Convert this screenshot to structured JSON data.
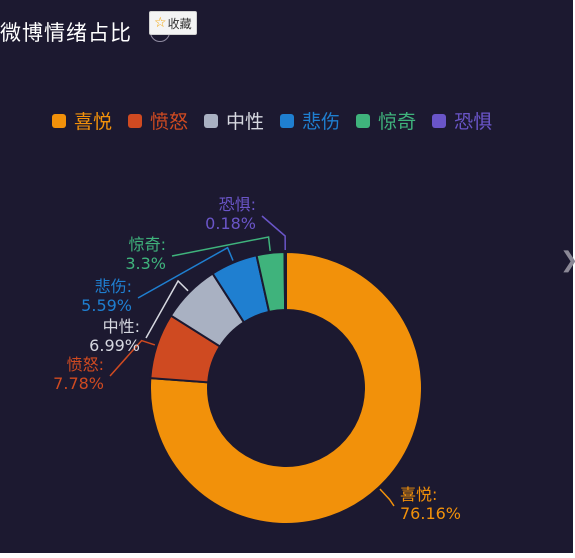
{
  "title": "微博情绪占比",
  "help_icon": "question-circle-icon",
  "favorite": {
    "icon": "star-icon",
    "label": "收藏"
  },
  "nav_arrow_icon": "chevron-right-icon",
  "colors": {
    "background": "#1c1930",
    "喜悦": "#f2910a",
    "愤怒": "#cf4a21",
    "中性": "#a9b1c2",
    "悲伤": "#1f7fd0",
    "惊奇": "#3fb37c",
    "恐惧": "#6a55c8"
  },
  "chart_data": {
    "type": "pie",
    "style": "donut",
    "legend_position": "top",
    "slices": [
      {
        "name": "喜悦",
        "value": 76.16,
        "label": "76.16%"
      },
      {
        "name": "愤怒",
        "value": 7.78,
        "label": "7.78%"
      },
      {
        "name": "中性",
        "value": 6.99,
        "label": "6.99%"
      },
      {
        "name": "悲伤",
        "value": 5.59,
        "label": "5.59%"
      },
      {
        "name": "惊奇",
        "value": 3.3,
        "label": "3.3%"
      },
      {
        "name": "恐惧",
        "value": 0.18,
        "label": "0.18%"
      }
    ]
  }
}
